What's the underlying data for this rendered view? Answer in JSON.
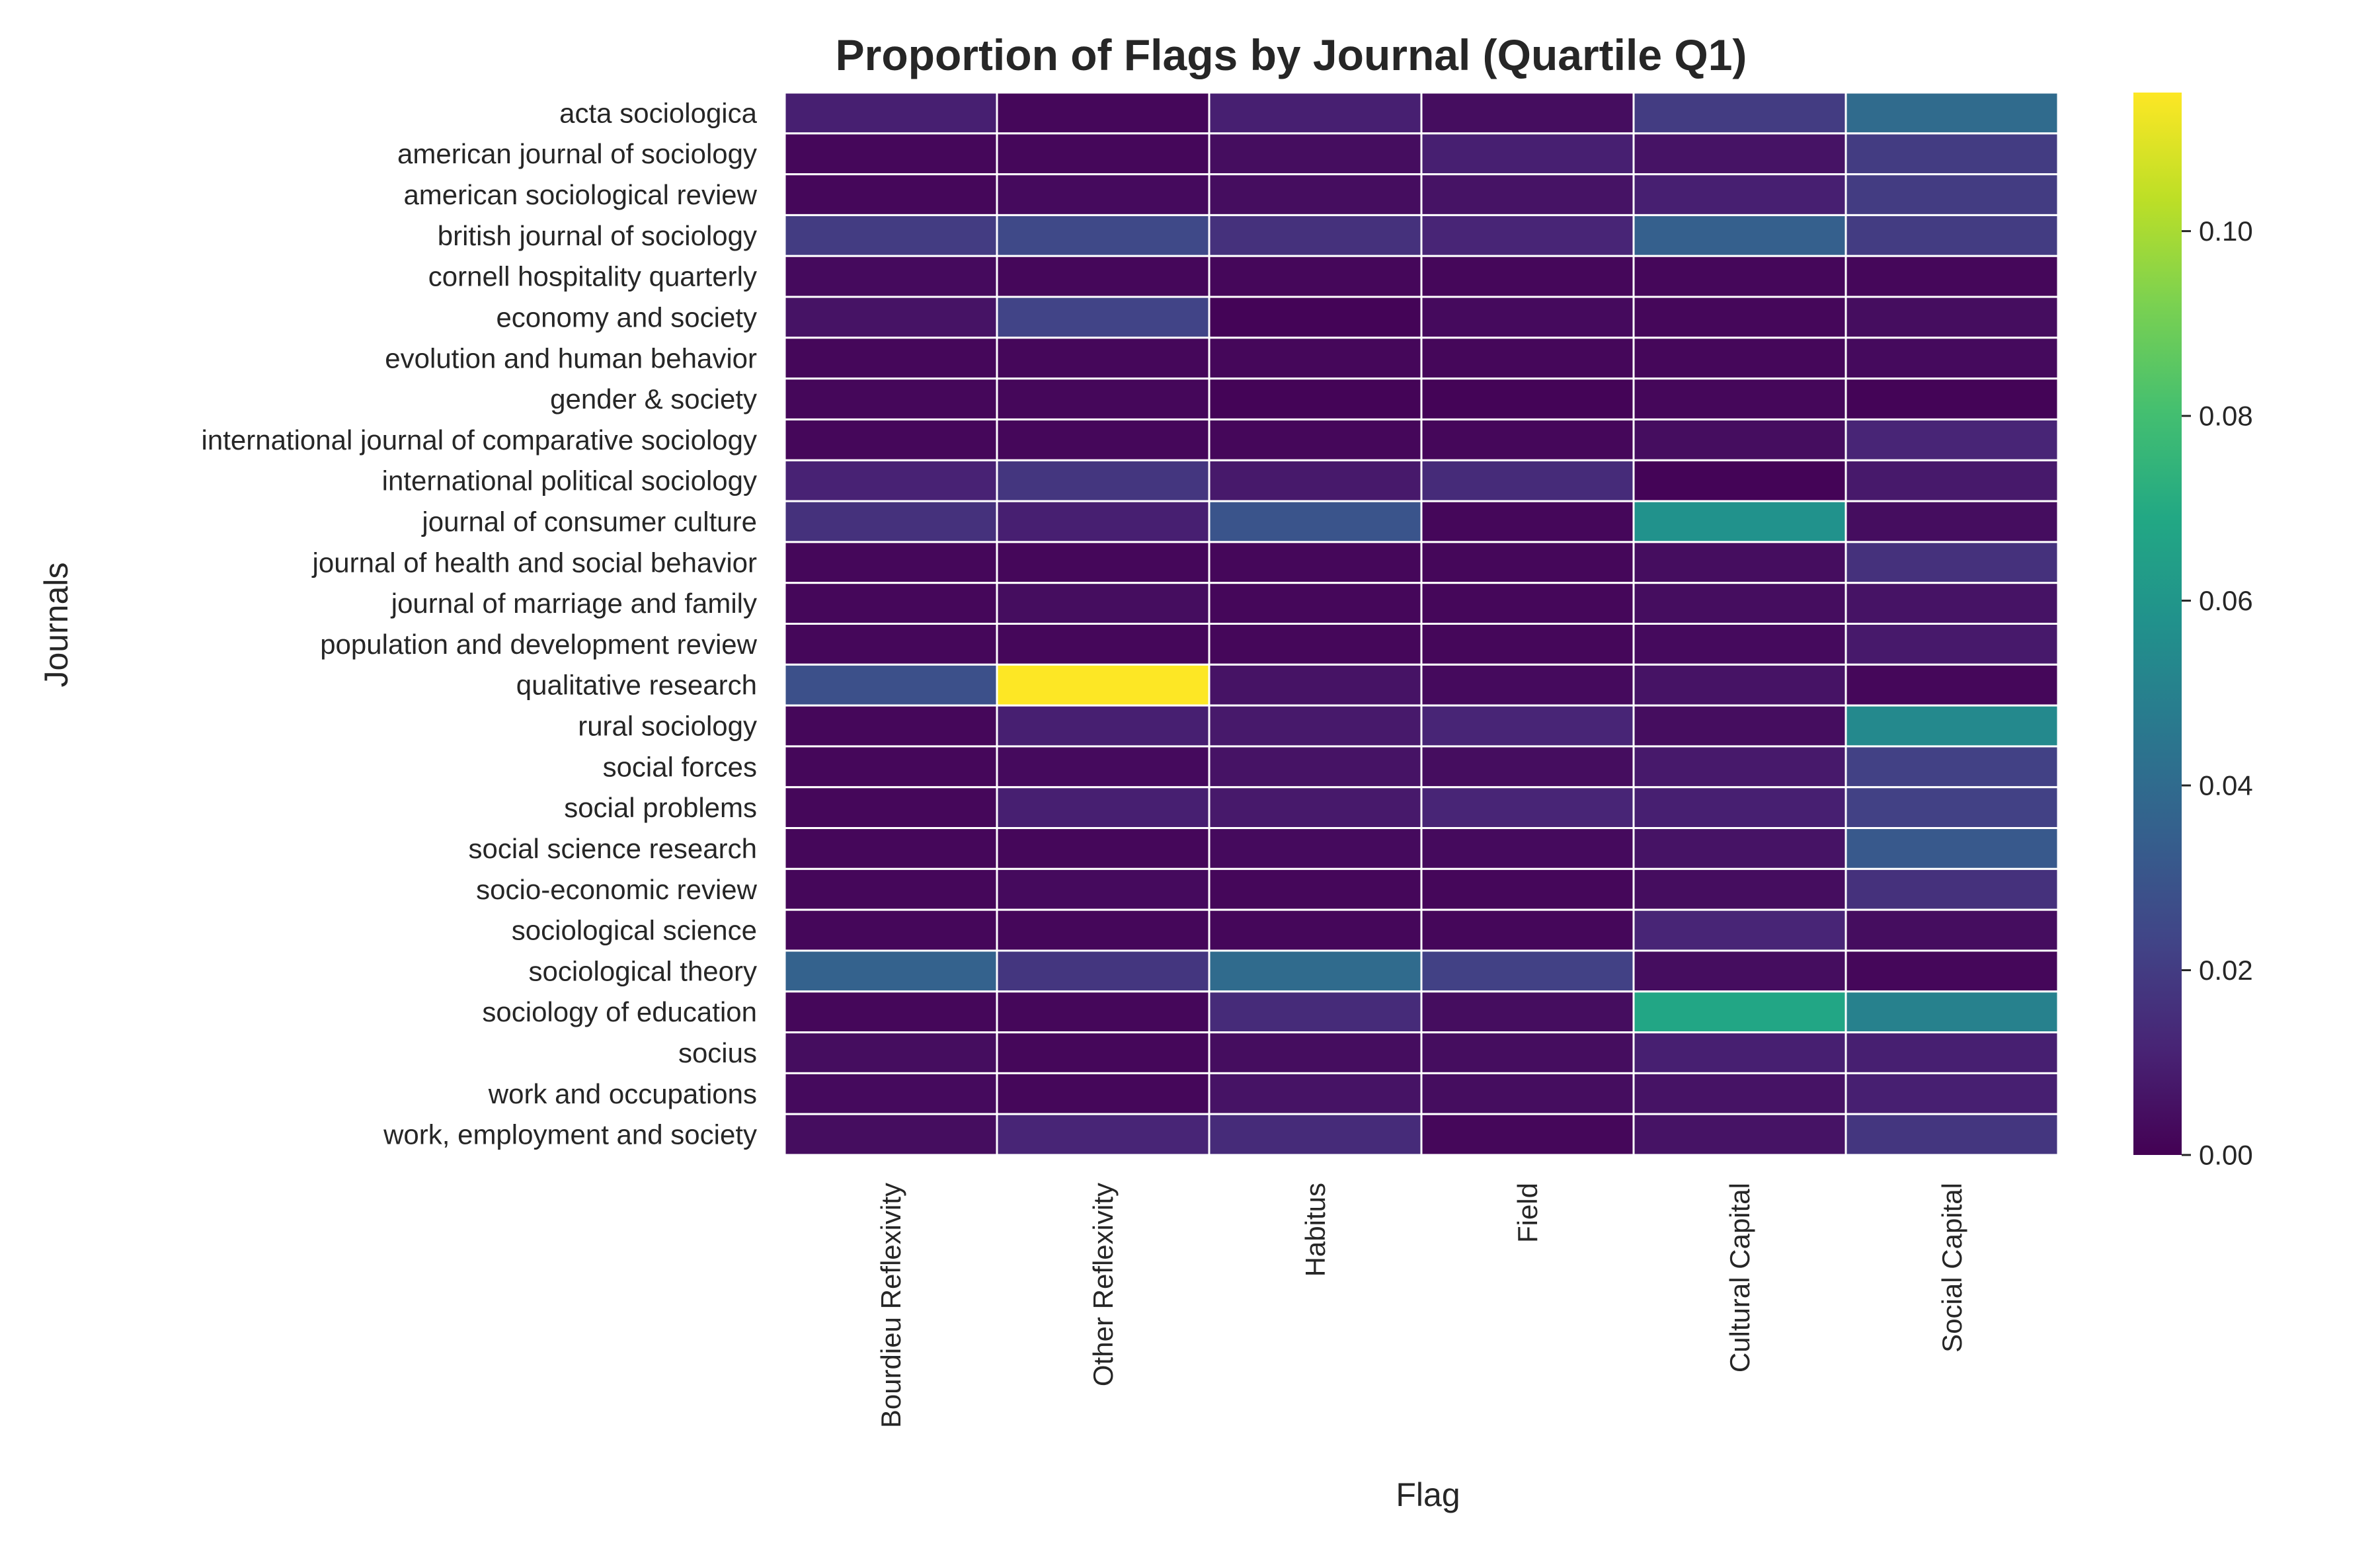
{
  "chart_data": {
    "type": "heatmap",
    "title": "Proportion of Flags by Journal (Quartile Q1)",
    "xlabel": "Flag",
    "ylabel": "Journals",
    "x_categories": [
      "Bourdieu Reflexivity",
      "Other Reflexivity",
      "Habitus",
      "Field",
      "Cultural Capital",
      "Social Capital"
    ],
    "y_categories": [
      "acta sociologica",
      "american journal of sociology",
      "american sociological review",
      "british journal of sociology",
      "cornell hospitality quarterly",
      "economy and society",
      "evolution and human behavior",
      "gender & society",
      "international journal of comparative sociology",
      "international political sociology",
      "journal of consumer culture",
      "journal of health and social behavior",
      "journal of marriage and family",
      "population and development review",
      "qualitative research",
      "rural sociology",
      "social forces",
      "social problems",
      "social science research",
      "socio-economic review",
      "sociological science",
      "sociological theory",
      "sociology of education",
      "socius",
      "work and occupations",
      "work, employment and society"
    ],
    "values": [
      [
        0.01,
        0.002,
        0.01,
        0.004,
        0.02,
        0.04
      ],
      [
        0.002,
        0.002,
        0.004,
        0.01,
        0.006,
        0.02
      ],
      [
        0.002,
        0.003,
        0.004,
        0.006,
        0.01,
        0.02
      ],
      [
        0.02,
        0.025,
        0.016,
        0.012,
        0.035,
        0.02
      ],
      [
        0.003,
        0.002,
        0.002,
        0.002,
        0.002,
        0.002
      ],
      [
        0.006,
        0.023,
        0.001,
        0.003,
        0.002,
        0.004
      ],
      [
        0.002,
        0.002,
        0.002,
        0.002,
        0.002,
        0.003
      ],
      [
        0.002,
        0.002,
        0.001,
        0.001,
        0.002,
        0.001
      ],
      [
        0.002,
        0.002,
        0.002,
        0.002,
        0.004,
        0.012
      ],
      [
        0.011,
        0.018,
        0.008,
        0.014,
        0.001,
        0.008
      ],
      [
        0.016,
        0.01,
        0.03,
        0.002,
        0.058,
        0.004
      ],
      [
        0.002,
        0.002,
        0.002,
        0.002,
        0.004,
        0.016
      ],
      [
        0.002,
        0.004,
        0.002,
        0.002,
        0.004,
        0.006
      ],
      [
        0.002,
        0.002,
        0.002,
        0.002,
        0.003,
        0.008
      ],
      [
        0.028,
        0.115,
        0.006,
        0.003,
        0.006,
        0.002
      ],
      [
        0.002,
        0.01,
        0.008,
        0.012,
        0.004,
        0.054
      ],
      [
        0.002,
        0.003,
        0.006,
        0.004,
        0.008,
        0.022
      ],
      [
        0.002,
        0.01,
        0.008,
        0.012,
        0.01,
        0.022
      ],
      [
        0.002,
        0.002,
        0.003,
        0.003,
        0.006,
        0.032
      ],
      [
        0.002,
        0.003,
        0.002,
        0.002,
        0.004,
        0.016
      ],
      [
        0.002,
        0.002,
        0.002,
        0.002,
        0.012,
        0.004
      ],
      [
        0.036,
        0.018,
        0.04,
        0.022,
        0.004,
        0.002
      ],
      [
        0.002,
        0.002,
        0.014,
        0.004,
        0.068,
        0.05
      ],
      [
        0.004,
        0.002,
        0.004,
        0.004,
        0.01,
        0.01
      ],
      [
        0.003,
        0.002,
        0.006,
        0.004,
        0.006,
        0.01
      ],
      [
        0.004,
        0.012,
        0.014,
        0.002,
        0.006,
        0.018
      ]
    ],
    "vmin": 0,
    "vmax": 0.115,
    "colormap": "viridis",
    "colorbar_ticks": [
      "0.00",
      "0.02",
      "0.04",
      "0.06",
      "0.08",
      "0.10"
    ],
    "colorbar_tick_values": [
      0,
      0.02,
      0.04,
      0.06,
      0.08,
      0.1
    ],
    "cell_border_color": "#ffffff"
  }
}
